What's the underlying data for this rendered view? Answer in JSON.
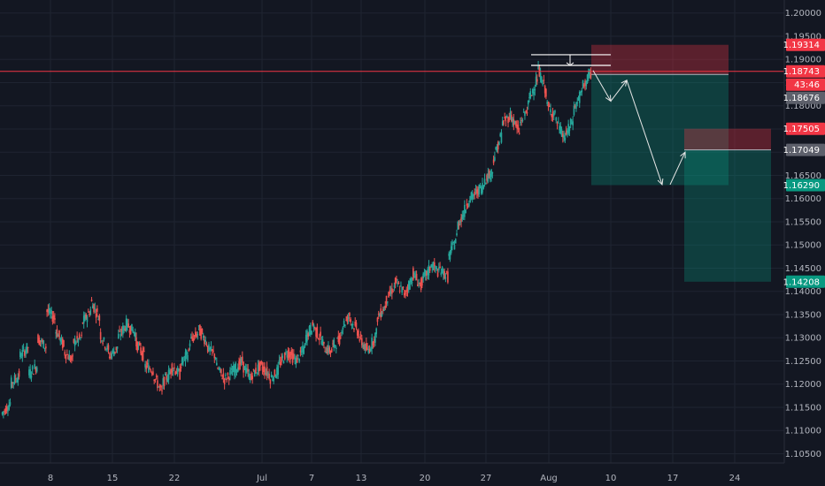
{
  "chart_data": {
    "type": "candlestick",
    "instrument_hint": "",
    "x_ticks": [
      "8",
      "15",
      "22",
      "Jul",
      "7",
      "13",
      "20",
      "27",
      "Aug",
      "10",
      "17",
      "24"
    ],
    "y_ticks": [
      "1.20000",
      "1.19500",
      "1.19000",
      "1.18500",
      "1.18000",
      "1.17500",
      "1.17000",
      "1.16500",
      "1.16000",
      "1.15500",
      "1.15000",
      "1.14500",
      "1.14000",
      "1.13500",
      "1.13000",
      "1.12500",
      "1.12000",
      "1.11500",
      "1.11000",
      "1.10500"
    ],
    "ylim": [
      1.103,
      1.2028
    ],
    "price_series_approx": [
      [
        1.1135,
        1.116
      ],
      [
        1.12,
        1.122
      ],
      [
        1.126,
        1.128
      ],
      [
        1.122,
        1.124
      ],
      [
        1.13,
        1.128
      ],
      [
        1.136,
        1.134
      ],
      [
        1.132,
        1.128
      ],
      [
        1.127,
        1.125
      ],
      [
        1.129,
        1.13
      ],
      [
        1.133,
        1.136
      ],
      [
        1.138,
        1.134
      ],
      [
        1.131,
        1.127
      ],
      [
        1.126,
        1.128
      ],
      [
        1.13,
        1.133
      ],
      [
        1.133,
        1.131
      ],
      [
        1.129,
        1.126
      ],
      [
        1.124,
        1.123
      ],
      [
        1.122,
        1.118
      ],
      [
        1.12,
        1.123
      ],
      [
        1.124,
        1.122
      ],
      [
        1.124,
        1.127
      ],
      [
        1.129,
        1.131
      ],
      [
        1.132,
        1.129
      ],
      [
        1.128,
        1.126
      ],
      [
        1.124,
        1.121
      ],
      [
        1.121,
        1.123
      ],
      [
        1.123,
        1.125
      ],
      [
        1.124,
        1.121
      ],
      [
        1.122,
        1.124
      ],
      [
        1.124,
        1.122
      ],
      [
        1.121,
        1.123
      ],
      [
        1.124,
        1.127
      ],
      [
        1.127,
        1.125
      ],
      [
        1.125,
        1.128
      ],
      [
        1.13,
        1.133
      ],
      [
        1.132,
        1.129
      ],
      [
        1.128,
        1.127
      ],
      [
        1.128,
        1.13
      ],
      [
        1.132,
        1.135
      ],
      [
        1.134,
        1.131
      ],
      [
        1.13,
        1.127
      ],
      [
        1.127,
        1.131
      ],
      [
        1.134,
        1.137
      ],
      [
        1.138,
        1.141
      ],
      [
        1.142,
        1.14
      ],
      [
        1.139,
        1.143
      ],
      [
        1.144,
        1.141
      ],
      [
        1.142,
        1.145
      ],
      [
        1.146,
        1.144
      ],
      [
        1.145,
        1.143
      ],
      [
        1.147,
        1.152
      ],
      [
        1.154,
        1.158
      ],
      [
        1.159,
        1.161
      ],
      [
        1.161,
        1.163
      ],
      [
        1.164,
        1.166
      ],
      [
        1.168,
        1.174
      ],
      [
        1.176,
        1.178
      ],
      [
        1.178,
        1.174
      ],
      [
        1.176,
        1.18
      ],
      [
        1.181,
        1.186
      ],
      [
        1.188,
        1.183
      ],
      [
        1.18,
        1.178
      ],
      [
        1.177,
        1.173
      ],
      [
        1.173,
        1.177
      ],
      [
        1.179,
        1.183
      ],
      [
        1.184,
        1.187
      ]
    ],
    "horizontal_lines": [
      {
        "price": 1.18743,
        "color": "#f23645"
      }
    ],
    "range_lines": [
      {
        "price": 1.191,
        "x_from_date": "Aug",
        "note": ""
      },
      {
        "price": 1.1887,
        "x_from_date": "Aug",
        "note": ""
      }
    ],
    "position_boxes": [
      {
        "entry": 1.18676,
        "stop": 1.19314,
        "target": 1.1629
      },
      {
        "entry": 1.17049,
        "stop": 1.17505,
        "target": 1.14208
      }
    ],
    "projected_path": [
      [
        1.1876,
        1.181
      ],
      [
        1.181,
        1.1855
      ],
      [
        1.1855,
        1.163
      ],
      [
        1.163,
        1.17
      ]
    ]
  },
  "price_labels": [
    {
      "text": "1.19314",
      "color": "#f23645"
    },
    {
      "text": "1.18743",
      "color": "#f23645"
    },
    {
      "text": "43:46",
      "color": "#f23645"
    },
    {
      "text": "1.18676",
      "color": "#5d606b"
    },
    {
      "text": "1.17505",
      "color": "#f23645"
    },
    {
      "text": "1.17049",
      "color": "#5d606b"
    },
    {
      "text": "1.16290",
      "color": "#089981"
    },
    {
      "text": "1.14208",
      "color": "#089981"
    }
  ],
  "colors": {
    "background": "#131722",
    "up": "#26a69a",
    "down": "#ef5350",
    "stop_zone": "#f23645",
    "target_zone": "#089981"
  }
}
